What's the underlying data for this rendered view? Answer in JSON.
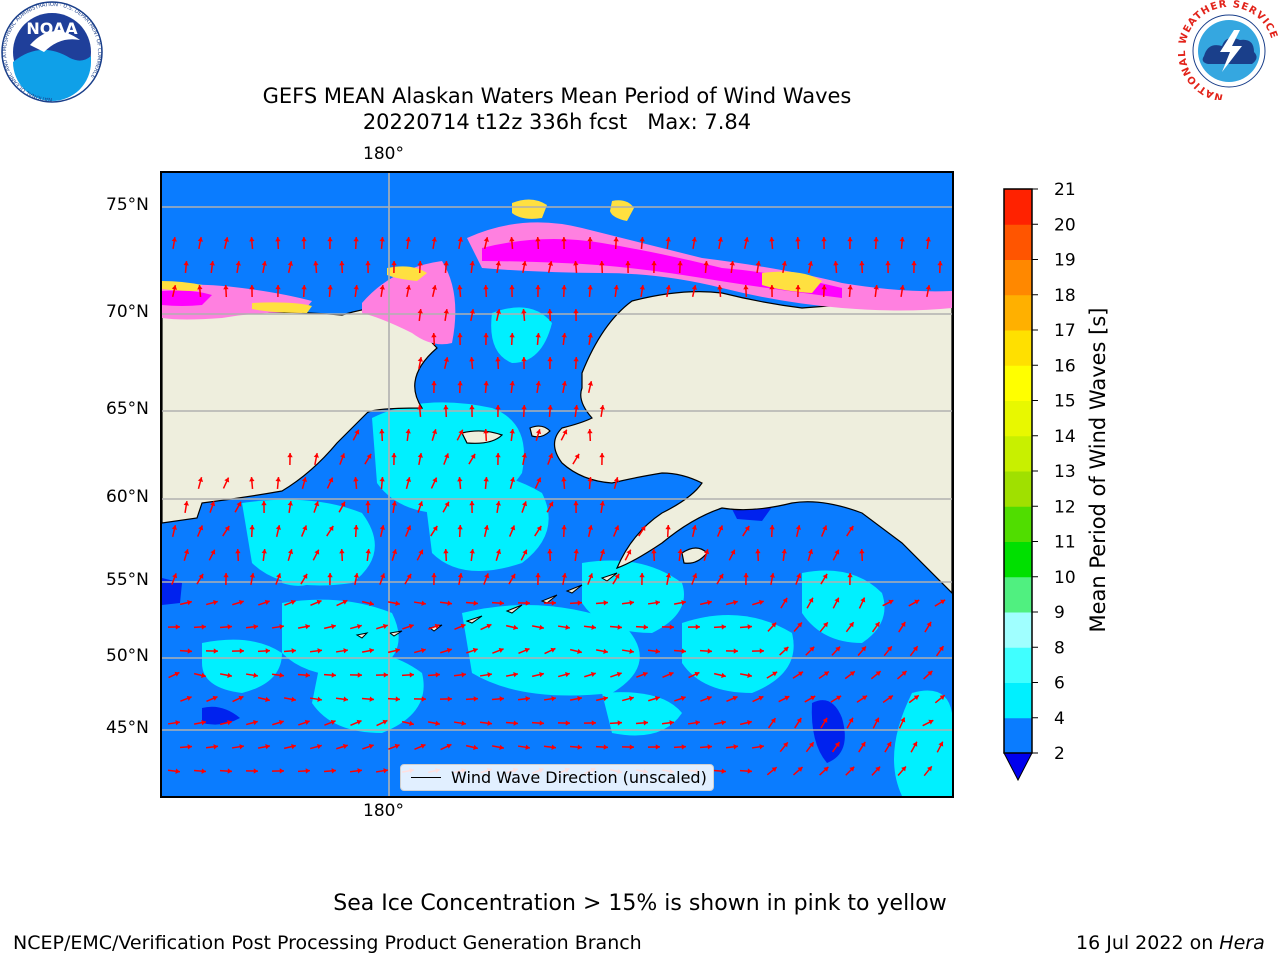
{
  "header": {
    "title_line1": "GEFS MEAN Alaskan Waters Mean Period of Wind Waves",
    "title_line2": "20220714 t12z 336h fcst   Max: 7.84"
  },
  "logos": {
    "noaa_text": "NOAA",
    "noaa_ring_text": "NATIONAL OCEANIC AND ATMOSPHERIC ADMINISTRATION · U.S. DEPARTMENT OF COMMERCE",
    "nws_ring_text": "NATIONAL WEATHER SERVICE"
  },
  "map": {
    "lon_label_top": "180°",
    "lon_label_bottom": "180°",
    "lat_labels": [
      "75°N",
      "70°N",
      "65°N",
      "60°N",
      "55°N",
      "50°N",
      "45°N"
    ],
    "legend_label": "Wind Wave Direction (unscaled)",
    "colors": {
      "land": "#eeeedd",
      "ocean_low": "#0a7cff",
      "ocean_mid": "#00f0ff",
      "ocean_deep": "#0022ee",
      "ice_pink": "#ff80e0",
      "ice_magenta": "#ff00ff",
      "ice_yellow": "#ffe040",
      "arrow": "#ff0000",
      "grid": "#b0b0b0"
    }
  },
  "colorbar": {
    "label": "Mean Period of Wind Waves [s]",
    "tick_labels": [
      "2",
      "4",
      "6",
      "8",
      "9",
      "10",
      "11",
      "12",
      "13",
      "14",
      "15",
      "16",
      "17",
      "18",
      "19",
      "20",
      "21"
    ],
    "colors": [
      "#0a7cff",
      "#00f0ff",
      "#40ffff",
      "#a0ffff",
      "#50f080",
      "#00e000",
      "#50dd00",
      "#a0e000",
      "#c8f000",
      "#e8f800",
      "#ffff00",
      "#ffe000",
      "#ffb000",
      "#ff8800",
      "#ff5500",
      "#ff2200",
      "#ff0000"
    ],
    "extend_color": "#0000ee"
  },
  "footer": {
    "ice_note": "Sea Ice Concentration > 15% is shown in pink to yellow",
    "credit": "NCEP/EMC/Verification Post Processing Product Generation Branch",
    "date": "16 Jul 2022 on",
    "machine": "Hera"
  }
}
